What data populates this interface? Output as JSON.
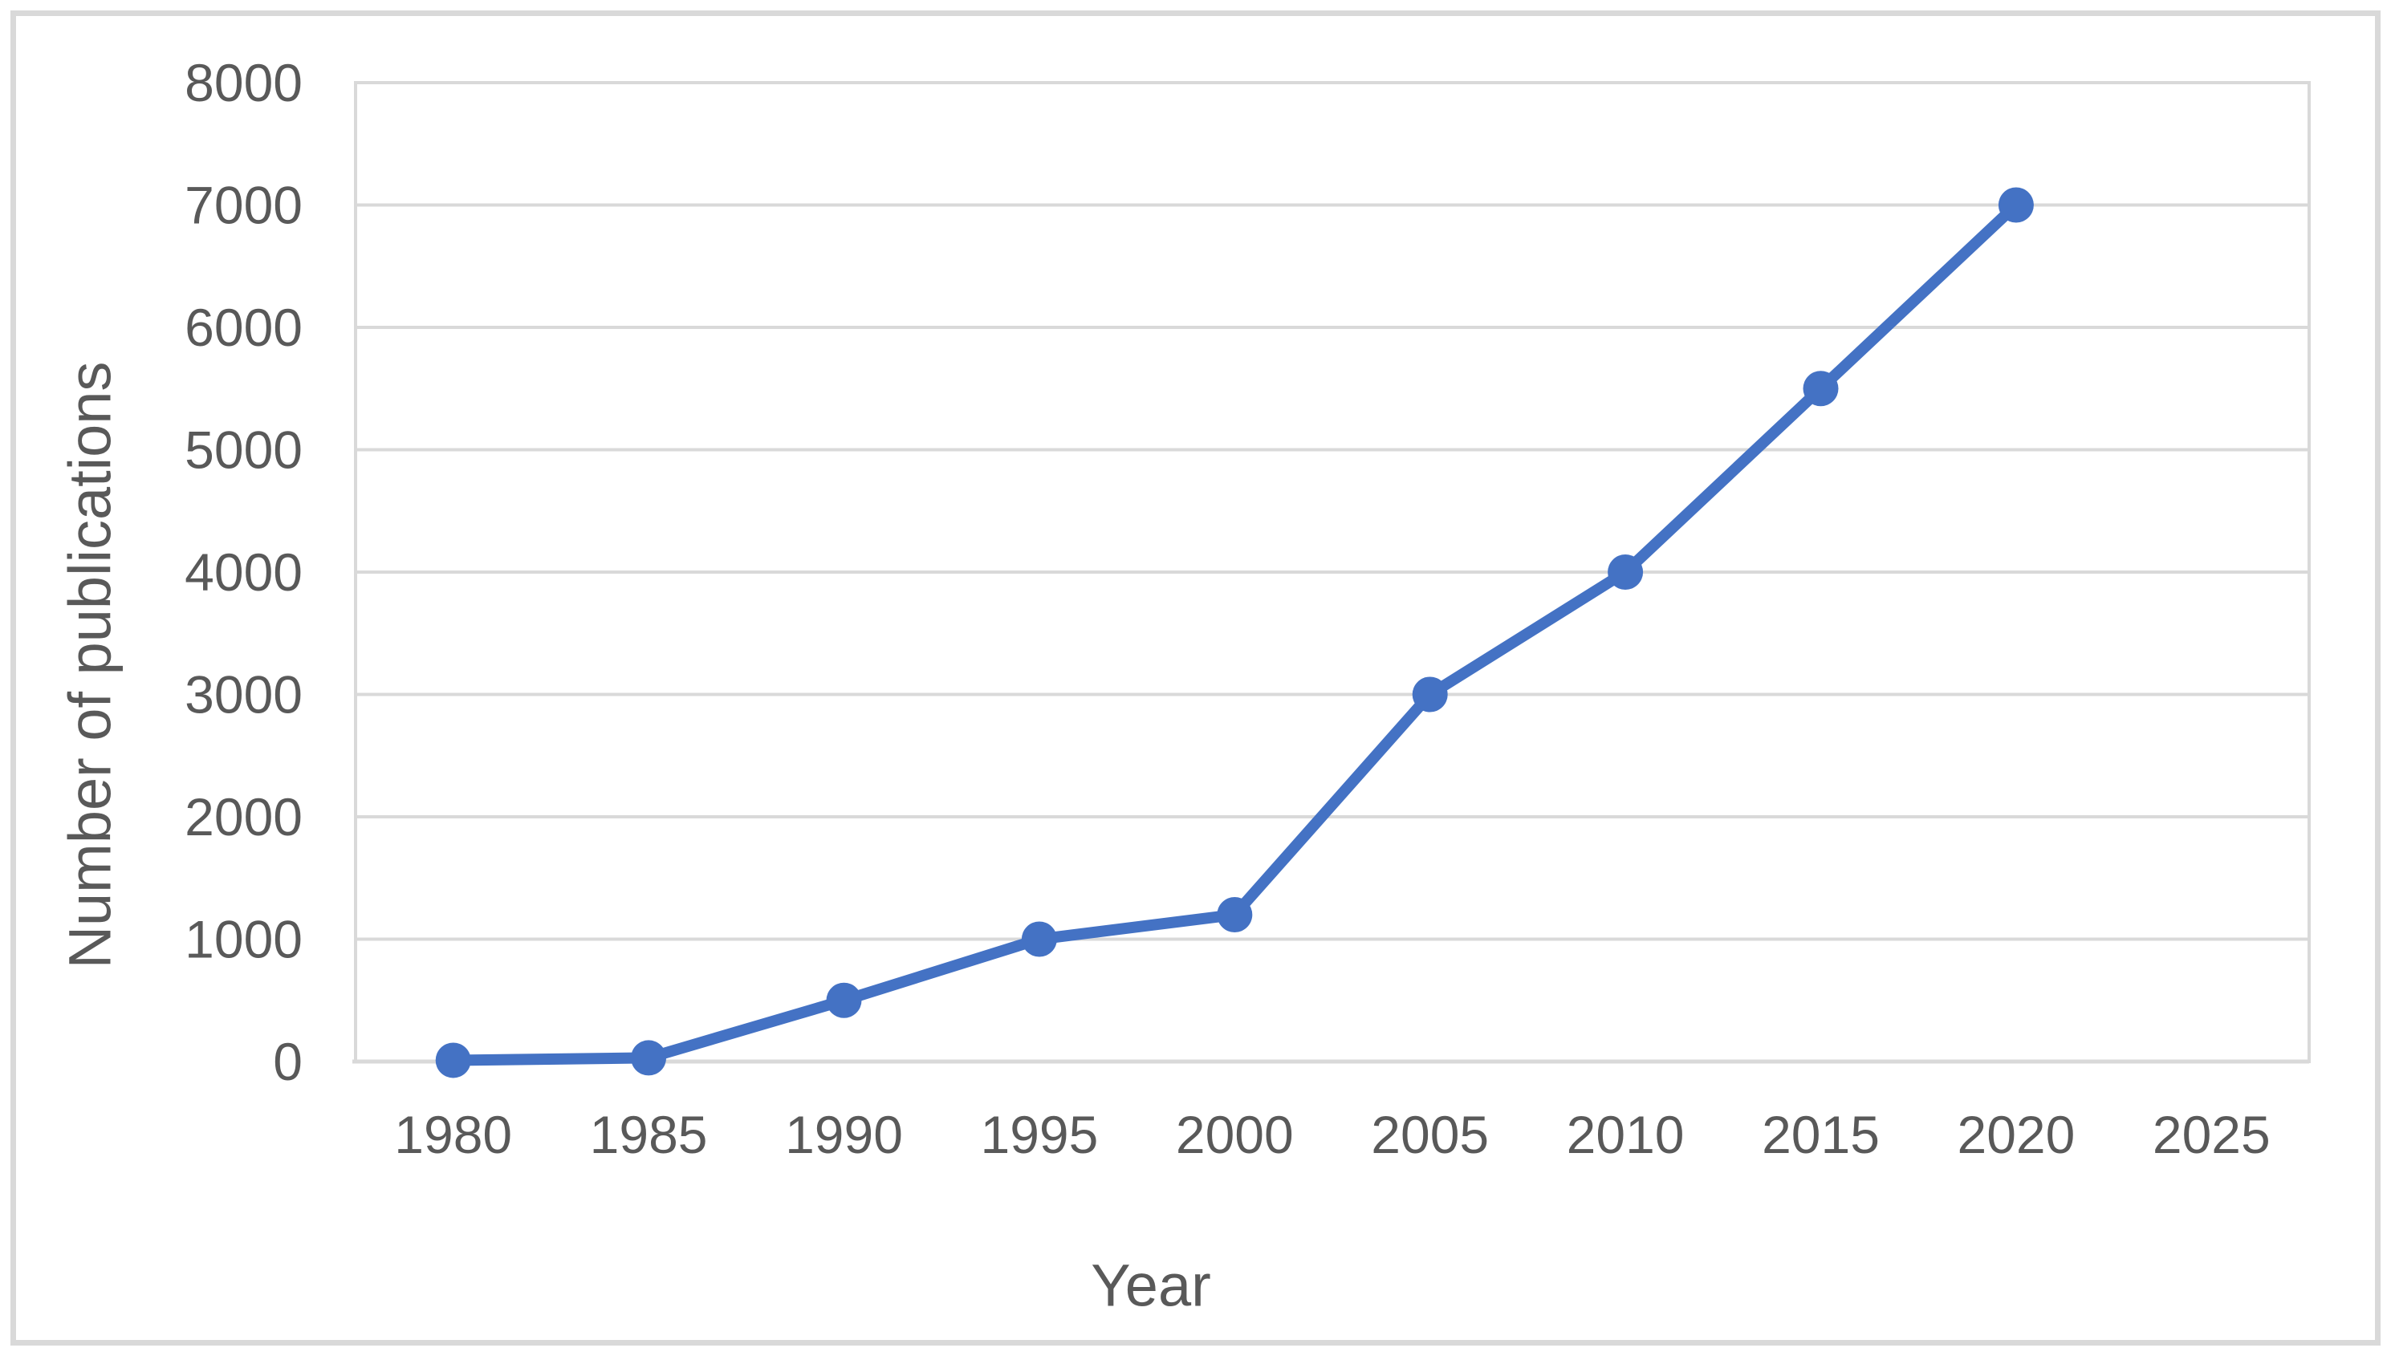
{
  "chart_data": {
    "type": "line",
    "title": "",
    "xlabel": "Year",
    "ylabel": "Number of publications",
    "categories": [
      "1980",
      "1985",
      "1990",
      "1995",
      "2000",
      "2005",
      "2010",
      "2015",
      "2020",
      "2025"
    ],
    "y_ticks": [
      0,
      1000,
      2000,
      3000,
      4000,
      5000,
      6000,
      7000,
      8000
    ],
    "y_tick_labels": [
      "0",
      "1000",
      "2000",
      "3000",
      "4000",
      "5000",
      "6000",
      "7000",
      "8000"
    ],
    "ylim": [
      0,
      8000
    ],
    "series": [
      {
        "name": "Number of publications",
        "x": [
          "1980",
          "1985",
          "1990",
          "1995",
          "2000",
          "2005",
          "2010",
          "2015",
          "2020"
        ],
        "values": [
          10,
          30,
          500,
          1000,
          1200,
          3000,
          4000,
          5500,
          7000
        ]
      }
    ],
    "grid": "horizontal",
    "legend": "none",
    "colors": {
      "line": "#4472C4",
      "marker": "#4472C4",
      "gridline": "#D9D9D9",
      "plot_border": "#D9D9D9",
      "figure_border": "#D9D9D9",
      "text": "#595959",
      "background": "#FFFFFF"
    }
  }
}
